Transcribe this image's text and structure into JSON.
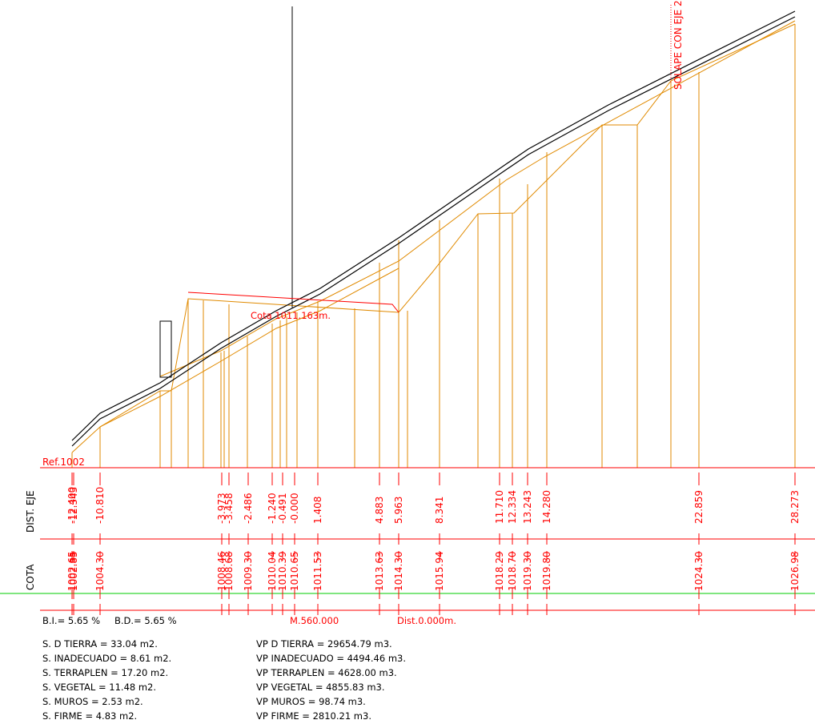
{
  "header": {
    "ref_label": "Ref.1002",
    "cota_label": "Cota 1011.163m.",
    "solape_label": "SOLAPE CON EJE 2"
  },
  "rows": {
    "dist_label": "DIST. EJE",
    "cota_label": "COTA"
  },
  "dist_values": [
    "-12.400",
    "-12.343",
    "-10.810",
    "-3.973",
    "-3.458",
    "-2.486",
    "-1.240",
    "-0.491",
    "-0.000",
    "1.408",
    "4.883",
    "5.963",
    "8.341",
    "11.710",
    "12.334",
    "13.243",
    "14.280",
    "22.859",
    "28.273"
  ],
  "cota_values": [
    "1002.65",
    "1002.85",
    "1004.30",
    "1008.46",
    "1008.68",
    "1009.30",
    "1010.04",
    "1010.39",
    "1010.65",
    "1011.53",
    "1013.63",
    "1014.30",
    "1015.94",
    "1018.29",
    "1018.70",
    "1019.30",
    "1019.80",
    "1024.30",
    "1026.98"
  ],
  "info_line": {
    "bi": "B.I.= 5.65 %",
    "bd": "B.D.= 5.65 %",
    "m": "M.560.000",
    "dist": "Dist.0.000m."
  },
  "surfaces": [
    "S. D TIERRA =   33.04 m2.",
    "S. INADECUADO =    8.61 m2.",
    "S. TERRAPLEN =  17.20 m2.",
    "S. VEGETAL =  11.48 m2.",
    "S. MUROS =    2.53 m2.",
    "S. FIRME =    4.83 m2."
  ],
  "volumes": [
    "VP D TIERRA = 29654.79 m3.",
    "VP INADECUADO = 4494.46 m3.",
    "VP TERRAPLEN = 4628.00 m3.",
    "VP VEGETAL = 4855.83 m3.",
    "VP MUROS =   98.74 m3.",
    "VP FIRME = 2810.21 m3."
  ],
  "colors": {
    "ground": "#000000",
    "layers": "#e08a00",
    "annotations": "#ff0000",
    "reference": "#00cc00"
  }
}
